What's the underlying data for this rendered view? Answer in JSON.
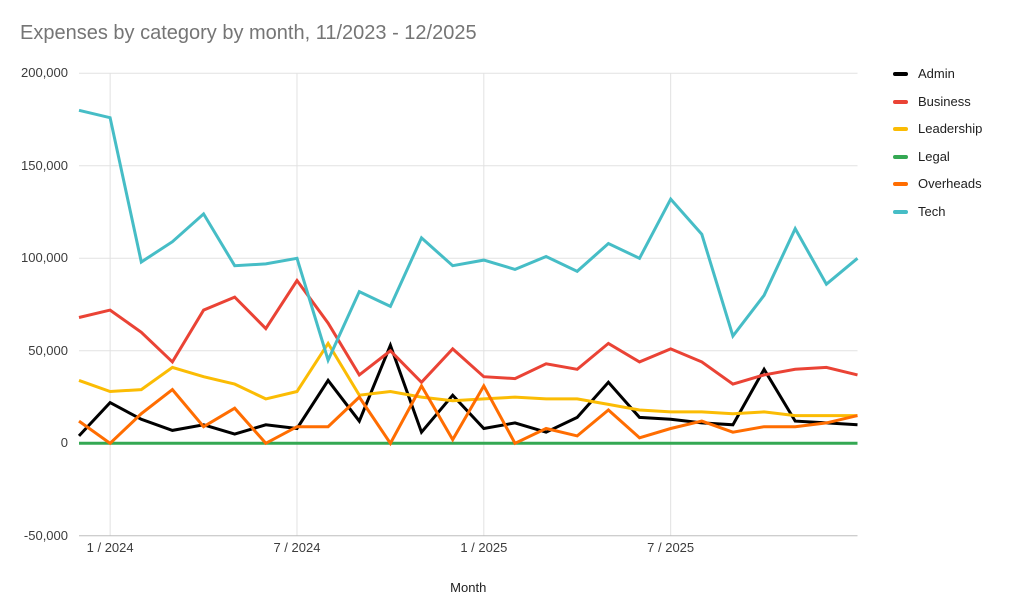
{
  "title": "Expenses by category by month, 11/2023 - 12/2025",
  "x_axis": {
    "title": "Month",
    "ticks": [
      {
        "label": "1 / 2024",
        "index": 1
      },
      {
        "label": "7 / 2024",
        "index": 7
      },
      {
        "label": "1 / 2025",
        "index": 13
      },
      {
        "label": "7 / 2025",
        "index": 19
      }
    ]
  },
  "y_axis": {
    "ticks": [
      {
        "label": "200,000",
        "value": 200000
      },
      {
        "label": "150,000",
        "value": 150000
      },
      {
        "label": "100,000",
        "value": 100000
      },
      {
        "label": "50,000",
        "value": 50000
      },
      {
        "label": "0",
        "value": 0
      },
      {
        "label": "-50,000",
        "value": -50000
      }
    ]
  },
  "legend": {
    "position": "right"
  },
  "chart_data": {
    "type": "line",
    "title": "Expenses by category by month, 11/2023 - 12/2025",
    "xlabel": "Month",
    "ylabel": "",
    "ylim": [
      -50000,
      200000
    ],
    "grid": true,
    "legend_position": "right",
    "x_months": [
      "11/2023",
      "12/2023",
      "1/2024",
      "2/2024",
      "3/2024",
      "4/2024",
      "5/2024",
      "6/2024",
      "7/2024",
      "8/2024",
      "9/2024",
      "10/2024",
      "11/2024",
      "12/2024",
      "1/2025",
      "2/2025",
      "3/2025",
      "4/2025",
      "5/2025",
      "6/2025",
      "7/2025",
      "8/2025",
      "9/2025",
      "10/2025",
      "11/2025",
      "12/2025"
    ],
    "series": [
      {
        "name": "Admin",
        "color": "#000000",
        "values": [
          4000,
          22000,
          13000,
          7000,
          10000,
          5000,
          10000,
          8000,
          34000,
          12000,
          53000,
          6000,
          26000,
          8000,
          11000,
          6000,
          14000,
          33000,
          14000,
          13000,
          11000,
          10000,
          40000,
          12000,
          11000,
          10000
        ]
      },
      {
        "name": "Business",
        "color": "#ea4335",
        "values": [
          68000,
          72000,
          60000,
          44000,
          72000,
          79000,
          62000,
          88000,
          65000,
          37000,
          50000,
          33000,
          51000,
          36000,
          35000,
          43000,
          40000,
          54000,
          44000,
          51000,
          44000,
          32000,
          37000,
          40000,
          41000,
          37000
        ]
      },
      {
        "name": "Leadership",
        "color": "#fbbc04",
        "values": [
          34000,
          28000,
          29000,
          41000,
          36000,
          32000,
          24000,
          28000,
          54000,
          26000,
          28000,
          25000,
          23000,
          24000,
          25000,
          24000,
          24000,
          21000,
          18000,
          17000,
          17000,
          16000,
          17000,
          15000,
          15000,
          15000
        ]
      },
      {
        "name": "Legal",
        "color": "#34a853",
        "values": [
          0,
          0,
          0,
          0,
          0,
          0,
          0,
          0,
          0,
          0,
          0,
          0,
          0,
          0,
          0,
          0,
          0,
          0,
          0,
          0,
          0,
          0,
          0,
          0,
          0,
          0
        ]
      },
      {
        "name": "Overheads",
        "color": "#ff6d01",
        "values": [
          12000,
          0,
          16000,
          29000,
          9000,
          19000,
          0,
          9000,
          9000,
          25000,
          0,
          31000,
          2000,
          31000,
          0,
          8000,
          4000,
          18000,
          3000,
          8000,
          12000,
          6000,
          9000,
          9000,
          11000,
          15000
        ]
      },
      {
        "name": "Tech",
        "color": "#46bdc6",
        "values": [
          180000,
          176000,
          98000,
          109000,
          124000,
          96000,
          97000,
          100000,
          45000,
          82000,
          74000,
          111000,
          96000,
          99000,
          94000,
          101000,
          93000,
          108000,
          100000,
          132000,
          113000,
          58000,
          80000,
          116000,
          86000,
          100000
        ]
      }
    ]
  }
}
